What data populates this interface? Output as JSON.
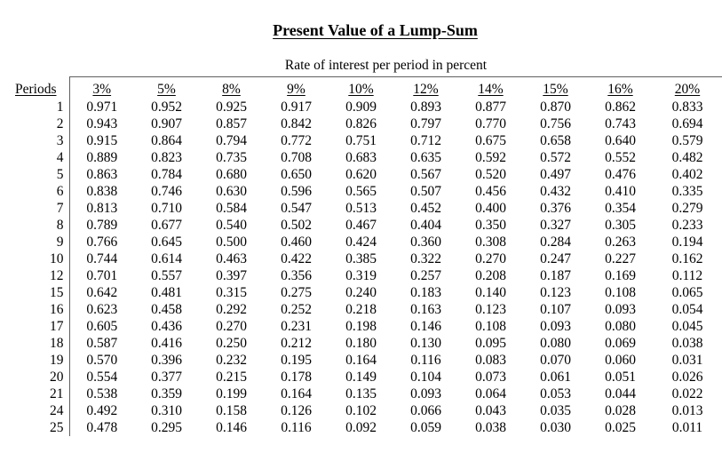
{
  "page": {
    "title": "Present Value of a Lump-Sum",
    "subtitle": "Rate of interest per period in percent"
  },
  "table": {
    "period_header": "Periods",
    "rate_headers": [
      "3%",
      "5%",
      "8%",
      "9%",
      "10%",
      "12%",
      "14%",
      "15%",
      "16%",
      "20%"
    ],
    "rows": [
      {
        "period": "1",
        "values": [
          "0.971",
          "0.952",
          "0.925",
          "0.917",
          "0.909",
          "0.893",
          "0.877",
          "0.870",
          "0.862",
          "0.833"
        ]
      },
      {
        "period": "2",
        "values": [
          "0.943",
          "0.907",
          "0.857",
          "0.842",
          "0.826",
          "0.797",
          "0.770",
          "0.756",
          "0.743",
          "0.694"
        ]
      },
      {
        "period": "3",
        "values": [
          "0.915",
          "0.864",
          "0.794",
          "0.772",
          "0.751",
          "0.712",
          "0.675",
          "0.658",
          "0.640",
          "0.579"
        ]
      },
      {
        "period": "4",
        "values": [
          "0.889",
          "0.823",
          "0.735",
          "0.708",
          "0.683",
          "0.635",
          "0.592",
          "0.572",
          "0.552",
          "0.482"
        ]
      },
      {
        "period": "5",
        "values": [
          "0.863",
          "0.784",
          "0.680",
          "0.650",
          "0.620",
          "0.567",
          "0.520",
          "0.497",
          "0.476",
          "0.402"
        ]
      },
      {
        "period": "6",
        "values": [
          "0.838",
          "0.746",
          "0.630",
          "0.596",
          "0.565",
          "0.507",
          "0.456",
          "0.432",
          "0.410",
          "0.335"
        ]
      },
      {
        "period": "7",
        "values": [
          "0.813",
          "0.710",
          "0.584",
          "0.547",
          "0.513",
          "0.452",
          "0.400",
          "0.376",
          "0.354",
          "0.279"
        ]
      },
      {
        "period": "8",
        "values": [
          "0.789",
          "0.677",
          "0.540",
          "0.502",
          "0.467",
          "0.404",
          "0.350",
          "0.327",
          "0.305",
          "0.233"
        ]
      },
      {
        "period": "9",
        "values": [
          "0.766",
          "0.645",
          "0.500",
          "0.460",
          "0.424",
          "0.360",
          "0.308",
          "0.284",
          "0.263",
          "0.194"
        ]
      },
      {
        "period": "10",
        "values": [
          "0.744",
          "0.614",
          "0.463",
          "0.422",
          "0.385",
          "0.322",
          "0.270",
          "0.247",
          "0.227",
          "0.162"
        ]
      },
      {
        "period": "12",
        "values": [
          "0.701",
          "0.557",
          "0.397",
          "0.356",
          "0.319",
          "0.257",
          "0.208",
          "0.187",
          "0.169",
          "0.112"
        ]
      },
      {
        "period": "15",
        "values": [
          "0.642",
          "0.481",
          "0.315",
          "0.275",
          "0.240",
          "0.183",
          "0.140",
          "0.123",
          "0.108",
          "0.065"
        ]
      },
      {
        "period": "16",
        "values": [
          "0.623",
          "0.458",
          "0.292",
          "0.252",
          "0.218",
          "0.163",
          "0.123",
          "0.107",
          "0.093",
          "0.054"
        ]
      },
      {
        "period": "17",
        "values": [
          "0.605",
          "0.436",
          "0.270",
          "0.231",
          "0.198",
          "0.146",
          "0.108",
          "0.093",
          "0.080",
          "0.045"
        ]
      },
      {
        "period": "18",
        "values": [
          "0.587",
          "0.416",
          "0.250",
          "0.212",
          "0.180",
          "0.130",
          "0.095",
          "0.080",
          "0.069",
          "0.038"
        ]
      },
      {
        "period": "19",
        "values": [
          "0.570",
          "0.396",
          "0.232",
          "0.195",
          "0.164",
          "0.116",
          "0.083",
          "0.070",
          "0.060",
          "0.031"
        ]
      },
      {
        "period": "20",
        "values": [
          "0.554",
          "0.377",
          "0.215",
          "0.178",
          "0.149",
          "0.104",
          "0.073",
          "0.061",
          "0.051",
          "0.026"
        ]
      },
      {
        "period": "21",
        "values": [
          "0.538",
          "0.359",
          "0.199",
          "0.164",
          "0.135",
          "0.093",
          "0.064",
          "0.053",
          "0.044",
          "0.022"
        ]
      },
      {
        "period": "24",
        "values": [
          "0.492",
          "0.310",
          "0.158",
          "0.126",
          "0.102",
          "0.066",
          "0.043",
          "0.035",
          "0.028",
          "0.013"
        ]
      },
      {
        "period": "25",
        "values": [
          "0.478",
          "0.295",
          "0.146",
          "0.116",
          "0.092",
          "0.059",
          "0.038",
          "0.030",
          "0.025",
          "0.011"
        ]
      }
    ]
  },
  "colors": {
    "background": "#ffffff",
    "text": "#000000",
    "line": "#5f5f5f"
  }
}
